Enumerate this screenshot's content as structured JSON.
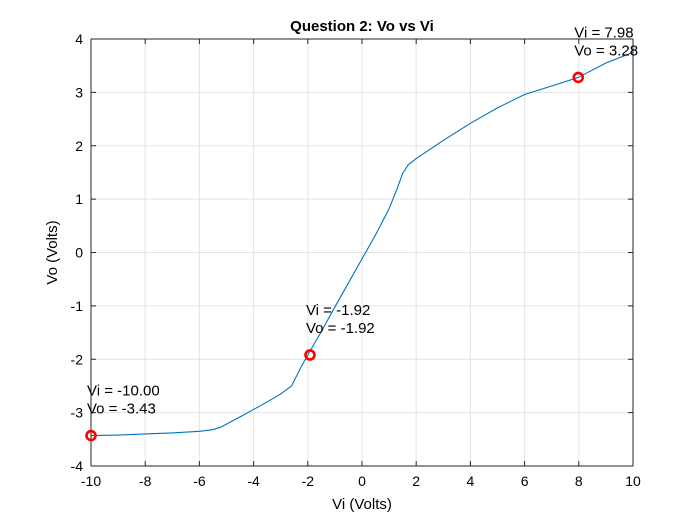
{
  "chart_data": {
    "type": "line",
    "title": "Question 2: Vo vs Vi",
    "xlabel": "Vi (Volts)",
    "ylabel": "Vo (Volts)",
    "xlim": [
      -10,
      10
    ],
    "ylim": [
      -4,
      4
    ],
    "xticks": [
      -10,
      -8,
      -6,
      -4,
      -2,
      0,
      2,
      4,
      6,
      8,
      10
    ],
    "yticks": [
      -4,
      -3,
      -2,
      -1,
      0,
      1,
      2,
      3,
      4
    ],
    "grid": true,
    "series": [
      {
        "color": "#0072BD",
        "x": [
          -10,
          -9,
          -8,
          -7,
          -6,
          -5.5,
          -5.2,
          -4.5,
          -4,
          -3.5,
          -3,
          -2.6,
          -2.4,
          -2.2,
          -2,
          -1.5,
          -1,
          -0.5,
          0,
          0.5,
          1,
          1.3,
          1.5,
          1.7,
          2,
          3,
          4,
          5,
          6,
          7,
          7.98,
          9,
          10
        ],
        "y": [
          -3.43,
          -3.42,
          -3.4,
          -3.38,
          -3.35,
          -3.32,
          -3.27,
          -3.08,
          -2.94,
          -2.8,
          -2.65,
          -2.5,
          -2.3,
          -2.1,
          -1.92,
          -1.48,
          -1.02,
          -0.57,
          -0.12,
          0.33,
          0.82,
          1.2,
          1.48,
          1.64,
          1.76,
          2.1,
          2.42,
          2.71,
          2.96,
          3.12,
          3.28,
          3.55,
          3.75
        ]
      }
    ],
    "markers": [
      {
        "x": -10.0,
        "y": -3.43,
        "color": "#FF0000",
        "label_vi": "Vi = -10.00",
        "label_vo": "Vo = -3.43"
      },
      {
        "x": -1.92,
        "y": -1.92,
        "color": "#FF0000",
        "label_vi": "Vi = -1.92",
        "label_vo": "Vo = -1.92"
      },
      {
        "x": 7.98,
        "y": 3.28,
        "color": "#FF0000",
        "label_vi": "Vi = 7.98",
        "label_vo": "Vo = 3.28"
      }
    ]
  }
}
